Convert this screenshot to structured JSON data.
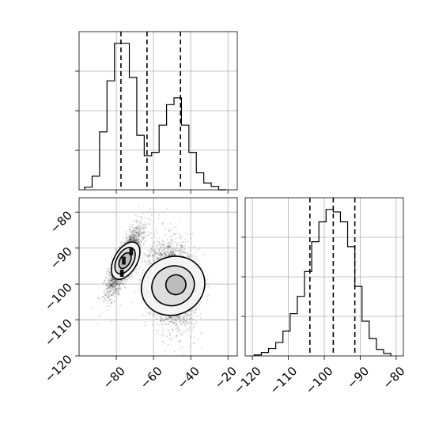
{
  "chart_data": [
    {
      "type": "bar",
      "panel": "histogram-parameter-1",
      "grid": true,
      "xlim": [
        -100,
        -15
      ],
      "bin_edges": [
        -97,
        -93,
        -89,
        -85,
        -81,
        -77,
        -73,
        -69,
        -65,
        -61,
        -57,
        -53,
        -49,
        -45,
        -41,
        -37,
        -33,
        -29,
        -25,
        -21
      ],
      "counts": [
        0.8,
        4,
        17,
        32,
        43,
        43,
        33,
        16,
        10,
        11,
        19,
        25,
        27,
        19,
        11,
        5,
        2,
        1,
        0
      ],
      "quantiles": [
        -77.5,
        -63.5,
        -45.5
      ],
      "x_ticks": [
        -80,
        -60,
        -40,
        -20
      ]
    },
    {
      "type": "bar",
      "panel": "histogram-parameter-2",
      "grid": true,
      "xlim": [
        -122,
        -78
      ],
      "x_ticks": [
        -120,
        -110,
        -100,
        -90,
        -80
      ],
      "x_tick_labels": [
        "−120",
        "−110",
        "−100",
        "−90",
        "−80"
      ],
      "bin_edges": [
        -119.5,
        -117.5,
        -115.5,
        -113.5,
        -111.5,
        -109.5,
        -107.5,
        -105.5,
        -103.5,
        -101.5,
        -99.5,
        -97.5,
        -95.5,
        -93.5,
        -91.5,
        -89.5,
        -87.5,
        -85.5,
        -83.5,
        -81.5
      ],
      "counts": [
        0.2,
        0.7,
        1.5,
        2.7,
        5,
        8.5,
        12,
        17,
        23,
        27,
        29.5,
        29,
        27,
        22,
        14,
        7,
        3.5,
        1.3,
        0.5
      ],
      "quantiles": [
        -104,
        -97.5,
        -91.5
      ]
    },
    {
      "type": "scatter",
      "panel": "joint-density",
      "grid": true,
      "xlim": [
        -100,
        -15
      ],
      "ylim": [
        -120,
        -76
      ],
      "x_ticks": [
        -80,
        -60,
        -40,
        -20
      ],
      "x_tick_labels": [
        "−80",
        "−60",
        "−40",
        "−20"
      ],
      "y_ticks": [
        -120,
        -110,
        -100,
        -90,
        -80
      ],
      "y_tick_labels": [
        "−120",
        "−110",
        "−100",
        "−90",
        "−80"
      ],
      "clusters": [
        {
          "center": [
            -75.5,
            -93.5
          ],
          "sd": [
            4.5,
            4.5
          ],
          "correlation": 0.8,
          "points": 2600,
          "contours": [
            [
              -75,
              -93.5,
              11,
              3.2,
              -60
            ],
            [
              -75.3,
              -93.5,
              7.8,
              2.3,
              -60
            ],
            [
              -75.3,
              -93.5,
              4.6,
              1.4,
              -60
            ]
          ],
          "dense_cells": [
            [
              -76,
              -93.5,
              2,
              2.2
            ],
            [
              -72,
              -91,
              2,
              2.0
            ],
            [
              -77,
              -97,
              2,
              2.0
            ]
          ]
        },
        {
          "center": [
            -50,
            -100
          ],
          "sd": [
            6,
            5.5
          ],
          "correlation": -0.15,
          "points": 4200,
          "contours": [
            [
              -49.5,
              -100.5,
              15.5,
              9,
              65
            ],
            [
              -49.5,
              -100.5,
              10.5,
              6,
              65
            ],
            [
              -48,
              -100.2,
              5.3,
              2.8,
              65
            ]
          ]
        }
      ]
    }
  ]
}
